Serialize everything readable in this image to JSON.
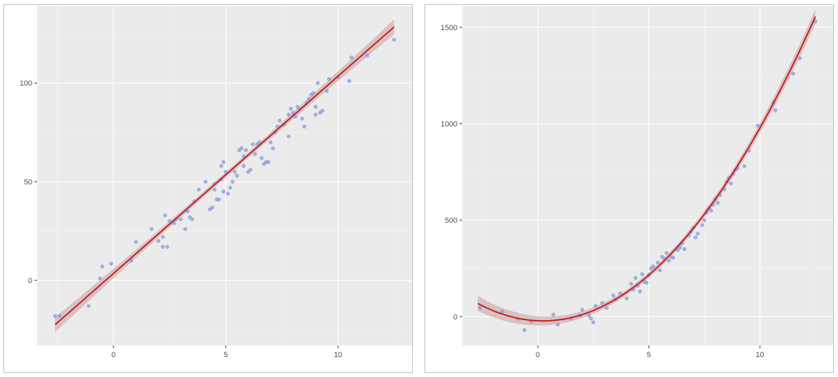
{
  "colors": {
    "panel_background": "#ebebeb",
    "grid_major": "#ffffff",
    "point": "#8a9ee0",
    "point_stroke": "#6e82cc",
    "fit_line": "#c21f1f",
    "confidence_band": "#d3b3b3",
    "tick_text": "#4d4d4d"
  },
  "chart_data": [
    {
      "type": "scatter",
      "title": "",
      "xlabel": "",
      "ylabel": "",
      "xlim": [
        -3.4,
        13.3
      ],
      "ylim": [
        -33,
        139
      ],
      "x_ticks": [
        0,
        5,
        10
      ],
      "x_tick_labels": [
        "0",
        "5",
        "10"
      ],
      "y_ticks": [
        0,
        50,
        100
      ],
      "y_tick_labels": [
        "0",
        "50",
        "100"
      ],
      "grid": true,
      "legend": "none",
      "fit": {
        "method": "linear",
        "intercept": 3.5,
        "slope": 10.0,
        "x_range": [
          -2.6,
          12.5
        ],
        "se_band": true
      },
      "points": [
        [
          -2.6,
          -18
        ],
        [
          -2.4,
          -18
        ],
        [
          -1.1,
          -13
        ],
        [
          -0.6,
          1
        ],
        [
          -0.5,
          7
        ],
        [
          -0.1,
          8.5
        ],
        [
          0.8,
          10
        ],
        [
          1.0,
          19.5
        ],
        [
          1.7,
          26
        ],
        [
          2.0,
          20
        ],
        [
          2.2,
          22
        ],
        [
          2.2,
          17
        ],
        [
          2.3,
          33
        ],
        [
          2.4,
          17
        ],
        [
          2.5,
          30
        ],
        [
          2.7,
          29
        ],
        [
          2.8,
          31
        ],
        [
          3.0,
          31
        ],
        [
          3.2,
          26
        ],
        [
          3.3,
          35
        ],
        [
          3.4,
          32
        ],
        [
          3.5,
          31
        ],
        [
          3.6,
          40
        ],
        [
          3.8,
          46
        ],
        [
          4.1,
          50
        ],
        [
          4.3,
          36
        ],
        [
          4.4,
          37
        ],
        [
          4.5,
          49
        ],
        [
          4.5,
          46
        ],
        [
          4.6,
          41
        ],
        [
          4.7,
          41
        ],
        [
          4.8,
          51
        ],
        [
          4.8,
          58
        ],
        [
          4.9,
          60
        ],
        [
          4.9,
          45
        ],
        [
          5.0,
          55
        ],
        [
          5.1,
          44
        ],
        [
          5.2,
          47
        ],
        [
          5.3,
          50
        ],
        [
          5.4,
          55
        ],
        [
          5.5,
          53
        ],
        [
          5.6,
          66
        ],
        [
          5.7,
          67
        ],
        [
          5.8,
          63
        ],
        [
          5.8,
          58
        ],
        [
          5.9,
          66
        ],
        [
          6.0,
          55
        ],
        [
          6.1,
          56
        ],
        [
          6.2,
          69
        ],
        [
          6.3,
          64
        ],
        [
          6.4,
          69
        ],
        [
          6.5,
          70
        ],
        [
          6.6,
          62
        ],
        [
          6.7,
          59
        ],
        [
          6.8,
          60
        ],
        [
          6.9,
          60
        ],
        [
          7.0,
          70
        ],
        [
          7.1,
          67
        ],
        [
          7.2,
          75
        ],
        [
          7.3,
          78
        ],
        [
          7.4,
          81
        ],
        [
          7.6,
          79
        ],
        [
          7.8,
          73
        ],
        [
          7.8,
          84
        ],
        [
          7.9,
          87
        ],
        [
          8.0,
          85
        ],
        [
          8.1,
          83
        ],
        [
          8.2,
          88
        ],
        [
          8.3,
          87
        ],
        [
          8.4,
          82
        ],
        [
          8.5,
          78
        ],
        [
          8.6,
          90
        ],
        [
          8.7,
          92
        ],
        [
          8.8,
          94
        ],
        [
          8.9,
          95
        ],
        [
          9.0,
          84
        ],
        [
          9.0,
          88
        ],
        [
          9.1,
          100
        ],
        [
          9.2,
          85
        ],
        [
          9.3,
          86
        ],
        [
          9.5,
          96
        ],
        [
          9.6,
          102
        ],
        [
          10.0,
          103
        ],
        [
          10.5,
          101
        ],
        [
          10.6,
          113
        ],
        [
          11.3,
          114
        ],
        [
          12.5,
          122
        ]
      ]
    },
    {
      "type": "scatter",
      "title": "",
      "xlabel": "",
      "ylabel": "",
      "xlim": [
        -3.4,
        13.3
      ],
      "ylim": [
        -150,
        1610
      ],
      "x_ticks": [
        0,
        5,
        10
      ],
      "x_tick_labels": [
        "0",
        "5",
        "10"
      ],
      "y_ticks": [
        0,
        500,
        1000,
        1500
      ],
      "y_tick_labels": [
        "0",
        "500",
        "1000",
        "1500"
      ],
      "grid": true,
      "legend": "none",
      "fit": {
        "method": "quadratic",
        "a": 10.5,
        "b": -5.0,
        "c": -22,
        "x_range": [
          -2.7,
          12.5
        ],
        "se_band": true
      },
      "points": [
        [
          -2.6,
          45
        ],
        [
          -1.6,
          25
        ],
        [
          -0.9,
          -12
        ],
        [
          -0.6,
          -70
        ],
        [
          -0.3,
          -25
        ],
        [
          0.7,
          10
        ],
        [
          0.9,
          -42
        ],
        [
          1.5,
          -10
        ],
        [
          1.9,
          5
        ],
        [
          2.0,
          35
        ],
        [
          2.3,
          5
        ],
        [
          2.4,
          -10
        ],
        [
          2.5,
          -30
        ],
        [
          2.6,
          55
        ],
        [
          2.9,
          70
        ],
        [
          3.1,
          45
        ],
        [
          3.4,
          110
        ],
        [
          3.5,
          90
        ],
        [
          3.7,
          120
        ],
        [
          4.0,
          95
        ],
        [
          4.2,
          170
        ],
        [
          4.3,
          140
        ],
        [
          4.4,
          200
        ],
        [
          4.5,
          160
        ],
        [
          4.6,
          130
        ],
        [
          4.7,
          220
        ],
        [
          4.8,
          180
        ],
        [
          4.9,
          175
        ],
        [
          5.0,
          215
        ],
        [
          5.1,
          250
        ],
        [
          5.2,
          260
        ],
        [
          5.4,
          280
        ],
        [
          5.5,
          240
        ],
        [
          5.6,
          310
        ],
        [
          5.7,
          300
        ],
        [
          5.8,
          330
        ],
        [
          5.9,
          290
        ],
        [
          6.0,
          310
        ],
        [
          6.1,
          305
        ],
        [
          6.3,
          345
        ],
        [
          6.4,
          360
        ],
        [
          6.5,
          380
        ],
        [
          6.6,
          350
        ],
        [
          6.8,
          420
        ],
        [
          6.9,
          440
        ],
        [
          7.0,
          460
        ],
        [
          7.1,
          410
        ],
        [
          7.2,
          430
        ],
        [
          7.4,
          475
        ],
        [
          7.5,
          500
        ],
        [
          7.6,
          540
        ],
        [
          7.7,
          560
        ],
        [
          7.8,
          550
        ],
        [
          7.9,
          580
        ],
        [
          8.0,
          610
        ],
        [
          8.1,
          590
        ],
        [
          8.2,
          630
        ],
        [
          8.4,
          660
        ],
        [
          8.5,
          700
        ],
        [
          8.6,
          720
        ],
        [
          8.7,
          690
        ],
        [
          8.8,
          740
        ],
        [
          8.9,
          760
        ],
        [
          9.0,
          770
        ],
        [
          9.3,
          780
        ],
        [
          9.5,
          860
        ],
        [
          9.9,
          990
        ],
        [
          10.6,
          1110
        ],
        [
          10.7,
          1070
        ],
        [
          11.5,
          1260
        ],
        [
          11.8,
          1340
        ],
        [
          12.5,
          1530
        ]
      ]
    }
  ]
}
